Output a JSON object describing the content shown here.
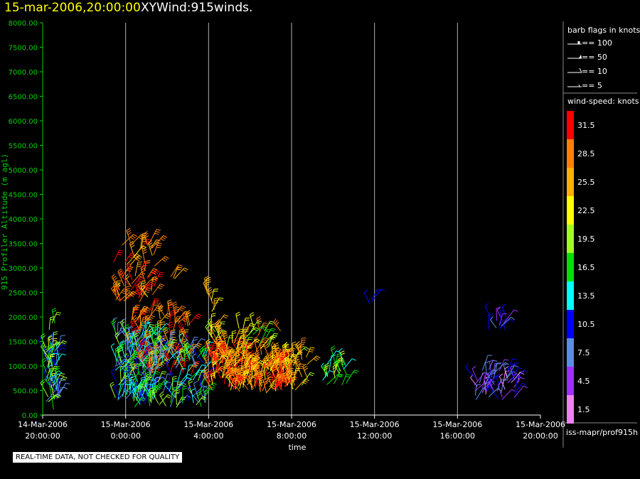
{
  "header": {
    "date_time": "15-mar-2006,20:00:00",
    "product": "XYWind:915winds."
  },
  "chart_data": {
    "type": "scatter",
    "xlabel": "time",
    "ylabel": "915 Profiler Altitude (m agl)",
    "xlim": [
      -4,
      20
    ],
    "ylim": [
      0,
      8000
    ],
    "grid": "vertical",
    "y_ticks": [
      "0.00",
      "500.00",
      "1000.00",
      "1500.00",
      "2000.00",
      "2500.00",
      "3000.00",
      "3500.00",
      "4000.00",
      "4500.00",
      "5000.00",
      "5500.00",
      "6000.00",
      "6500.00",
      "7000.00",
      "7500.00",
      "8000.00"
    ],
    "y_tick_values": [
      0,
      500,
      1000,
      1500,
      2000,
      2500,
      3000,
      3500,
      4000,
      4500,
      5000,
      5500,
      6000,
      6500,
      7000,
      7500,
      8000
    ],
    "x_ticks": [
      {
        "date": "14-Mar-2006",
        "time": "20:00:00"
      },
      {
        "date": "15-Mar-2006",
        "time": "0:00:00"
      },
      {
        "date": "15-Mar-2006",
        "time": "4:00:00"
      },
      {
        "date": "15-Mar-2006",
        "time": "8:00:00"
      },
      {
        "date": "15-Mar-2006",
        "time": "12:00:00"
      },
      {
        "date": "15-Mar-2006",
        "time": "16:00:00"
      },
      {
        "date": "15-Mar-2006",
        "time": "20:00:00"
      }
    ],
    "x_tick_values": [
      -4,
      0,
      4,
      8,
      12,
      16,
      20
    ],
    "gridline_hours": [
      0,
      4,
      8,
      12,
      16
    ],
    "wind_clusters": [
      {
        "t": [
          -3.9,
          -3.2
        ],
        "z": [
          100,
          1400
        ],
        "speed": [
          6,
          24
        ],
        "n": 60
      },
      {
        "t": [
          -3.7,
          -3.4
        ],
        "z": [
          1700,
          1950
        ],
        "speed": [
          14,
          20
        ],
        "n": 3
      },
      {
        "t": [
          -0.5,
          1.5
        ],
        "z": [
          200,
          1700
        ],
        "speed": [
          6,
          20
        ],
        "n": 170
      },
      {
        "t": [
          -0.6,
          1.4
        ],
        "z": [
          2300,
          3600
        ],
        "speed": [
          22,
          32
        ],
        "n": 55
      },
      {
        "t": [
          0.2,
          3.2
        ],
        "z": [
          800,
          2100
        ],
        "speed": [
          24,
          33
        ],
        "n": 90
      },
      {
        "t": [
          0.2,
          3.9
        ],
        "z": [
          150,
          1400
        ],
        "speed": [
          6,
          20
        ],
        "n": 120
      },
      {
        "t": [
          2.1,
          2.9
        ],
        "z": [
          2750,
          2850
        ],
        "speed": [
          24,
          28
        ],
        "n": 3
      },
      {
        "t": [
          4.0,
          7.8
        ],
        "z": [
          450,
          1250
        ],
        "speed": [
          22,
          33
        ],
        "n": 230
      },
      {
        "t": [
          4.0,
          5.5
        ],
        "z": [
          1250,
          1800
        ],
        "speed": [
          20,
          30
        ],
        "n": 25
      },
      {
        "t": [
          3.9,
          4.5
        ],
        "z": [
          2100,
          2550
        ],
        "speed": [
          22,
          27
        ],
        "n": 7
      },
      {
        "t": [
          5.5,
          7.5
        ],
        "z": [
          1300,
          1750
        ],
        "speed": [
          16,
          30
        ],
        "n": 20
      },
      {
        "t": [
          7.8,
          8.8
        ],
        "z": [
          500,
          1300
        ],
        "speed": [
          20,
          28
        ],
        "n": 25
      },
      {
        "t": [
          9.4,
          10.7
        ],
        "z": [
          600,
          1050
        ],
        "speed": [
          14,
          22
        ],
        "n": 22
      },
      {
        "t": [
          11.5,
          11.9
        ],
        "z": [
          2250,
          2400
        ],
        "speed": [
          9,
          11
        ],
        "n": 3
      },
      {
        "t": [
          17.2,
          18.5
        ],
        "z": [
          1700,
          2000
        ],
        "speed": [
          3,
          11
        ],
        "n": 12
      },
      {
        "t": [
          16.8,
          19.0
        ],
        "z": [
          300,
          950
        ],
        "speed": [
          2,
          11
        ],
        "n": 55
      }
    ]
  },
  "legend": {
    "barb_title": "barb flags in knots",
    "barb_entries": [
      "== 100",
      "== 50",
      "== 10",
      "== 5"
    ],
    "speed_title": "wind-speed: knots",
    "colorbar": [
      {
        "label": "31.5",
        "color": "#ff0000"
      },
      {
        "label": "28.5",
        "color": "#ff8000"
      },
      {
        "label": "25.5",
        "color": "#ffb000"
      },
      {
        "label": "22.5",
        "color": "#ffff00"
      },
      {
        "label": "19.5",
        "color": "#a0ff20"
      },
      {
        "label": "16.5",
        "color": "#00e000"
      },
      {
        "label": "13.5",
        "color": "#00ffff"
      },
      {
        "label": "10.5",
        "color": "#0000ff"
      },
      {
        "label": "7.5",
        "color": "#5a8ce8"
      },
      {
        "label": "4.5",
        "color": "#9b30ff"
      },
      {
        "label": "1.5",
        "color": "#ee82ee"
      }
    ]
  },
  "footer": {
    "source": "iss-mapr/prof915h",
    "qc_note": "REAL-TIME DATA, NOT CHECKED FOR QUALITY"
  },
  "colors": {
    "axis_green": "#00d000",
    "title_yellow": "#ffff00",
    "grid": "#b0b0b0"
  }
}
